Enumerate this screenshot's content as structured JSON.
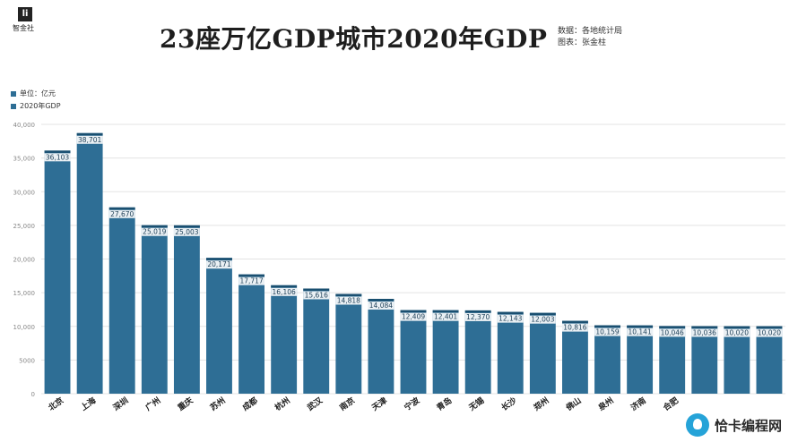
{
  "header": {
    "logo_letter": "li",
    "logo_name": "智金社",
    "title": "23座万亿GDP城市2020年GDP",
    "source": "数据：各地统计局",
    "author": "图表：张金柱"
  },
  "legend": {
    "unit": "单位：亿元",
    "series": "2020年GDP"
  },
  "watermark": "恰卡编程网",
  "chart_data": {
    "type": "bar",
    "title": "23座万亿GDP城市2020年GDP",
    "ylabel": "单位：亿元",
    "ylim": [
      0,
      40000
    ],
    "yticks": [
      "0",
      "5000",
      "10,000",
      "15,000",
      "20,000",
      "25,000",
      "30,000",
      "35,000",
      "40,000"
    ],
    "grid": true,
    "legend_position": "top-left",
    "color": "#2e6e95",
    "categories": [
      "北京",
      "上海",
      "深圳",
      "广州",
      "重庆",
      "苏州",
      "成都",
      "杭州",
      "武汉",
      "南京",
      "天津",
      "宁波",
      "青岛",
      "无锡",
      "长沙",
      "郑州",
      "佛山",
      "泉州",
      "济南",
      "合肥",
      "",
      "",
      ""
    ],
    "series": [
      {
        "name": "2020年GDP",
        "values": [
          36103,
          38701,
          27670,
          25019,
          25003,
          20171,
          17717,
          16106,
          15616,
          14818,
          14084,
          12409,
          12401,
          12370,
          12143,
          12003,
          10816,
          10159,
          10141,
          10046,
          10036,
          10020,
          10020
        ],
        "labels": [
          "36,103",
          "38,701",
          "27,670",
          "25,019",
          "25,003",
          "20,171",
          "17,717",
          "16,106",
          "15,616",
          "14,818",
          "14,084",
          "12,409",
          "12,401",
          "12,370",
          "12,143",
          "12,003",
          "10,816",
          "10,159",
          "10,141",
          "10,046",
          "10,036",
          "10,020",
          "10,020"
        ]
      }
    ]
  }
}
